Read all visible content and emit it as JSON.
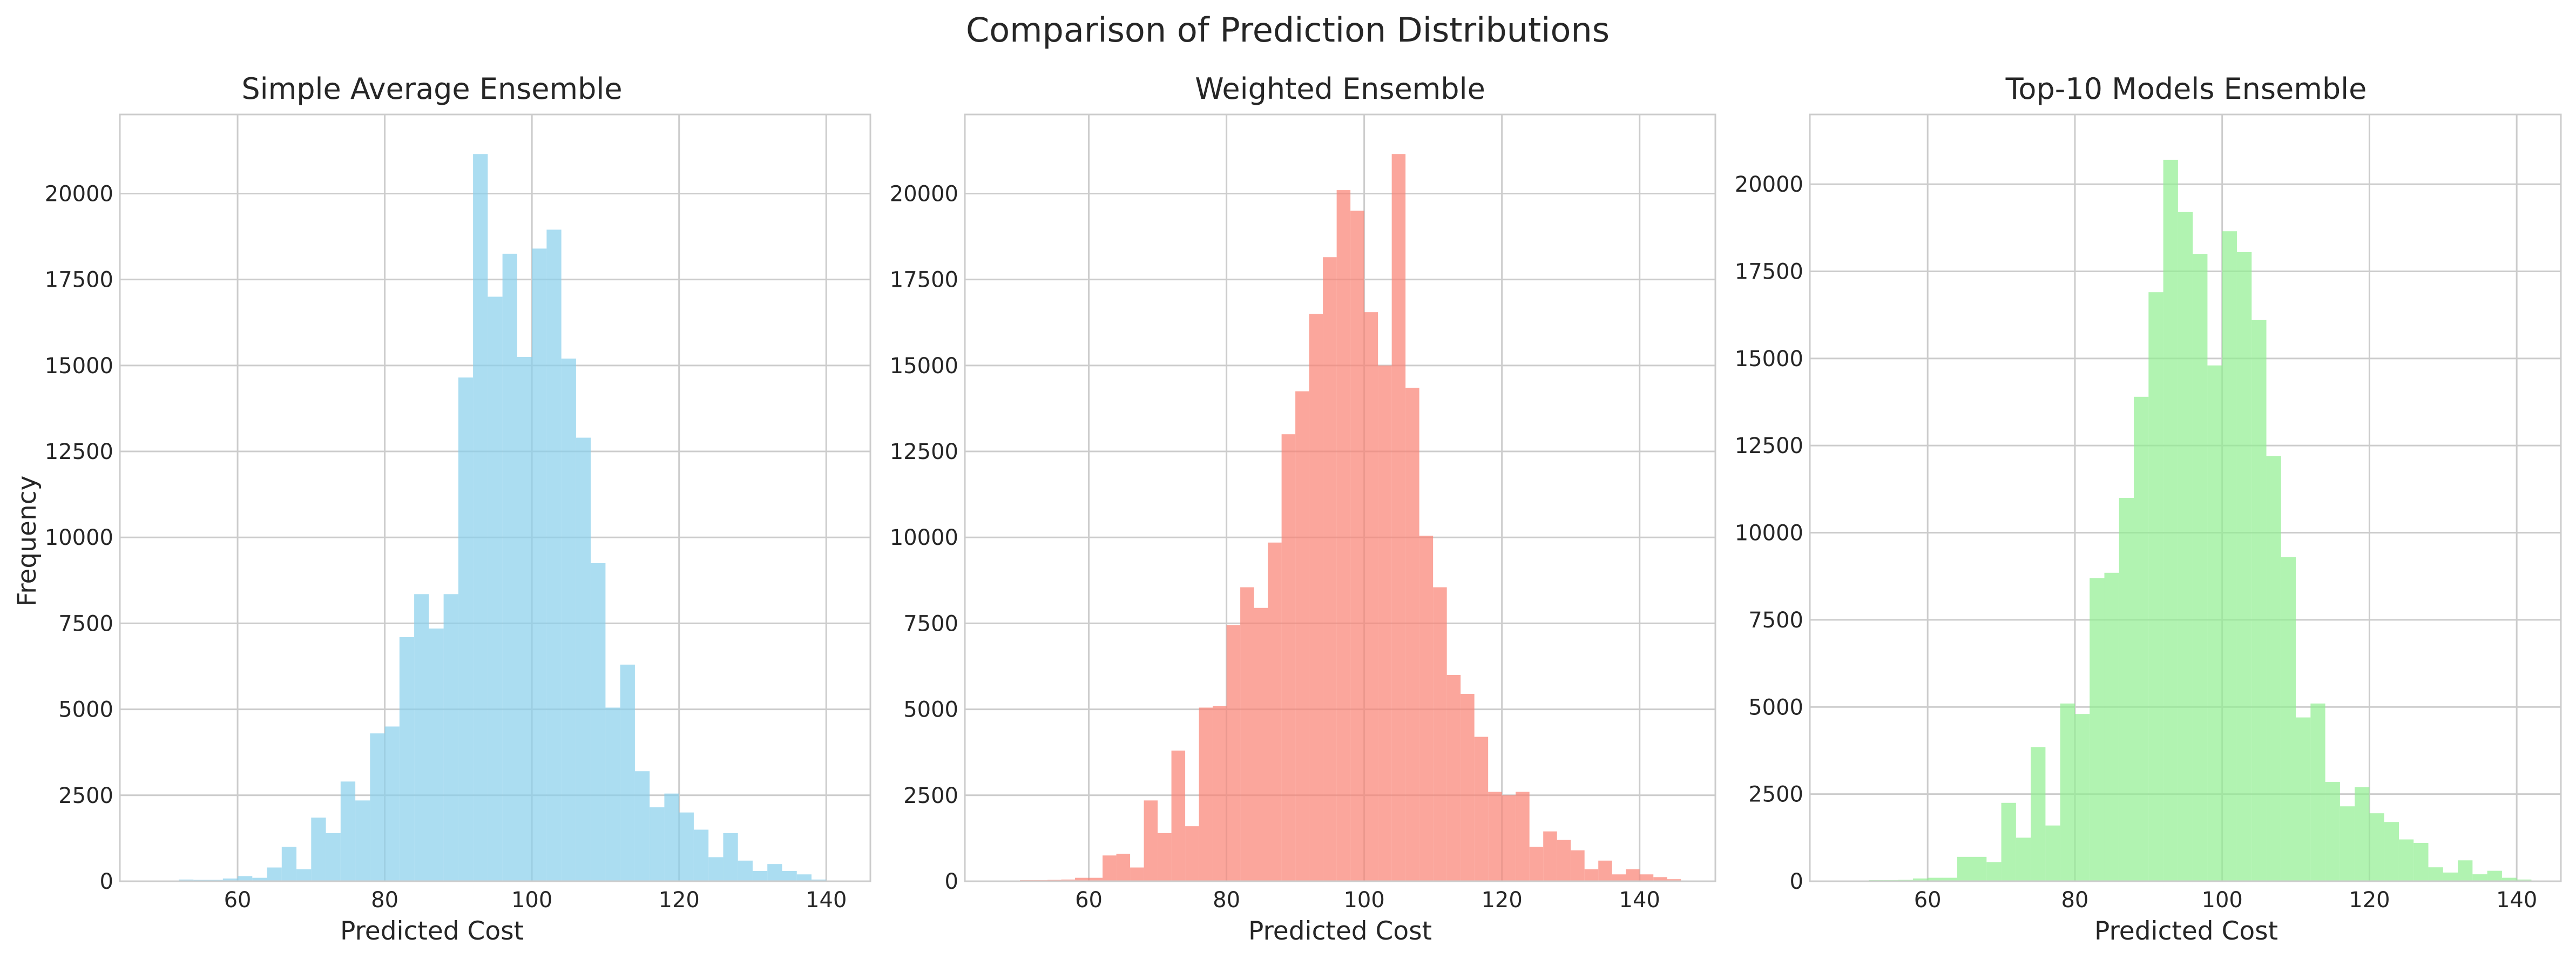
{
  "figure": {
    "title": "Comparison of Prediction Distributions"
  },
  "chart_data": [
    {
      "type": "bar",
      "title": "Simple Average Ensemble",
      "xlabel": "Predicted Cost",
      "ylabel": "Frequency",
      "xlim": [
        44,
        146
      ],
      "ylim": [
        0,
        22300
      ],
      "xticks": [
        60,
        80,
        100,
        120,
        140
      ],
      "yticks": [
        0,
        2500,
        5000,
        7500,
        10000,
        12500,
        15000,
        17500,
        20000
      ],
      "bin_width": 2,
      "bin_starts": [
        52,
        54,
        56,
        58,
        60,
        62,
        64,
        66,
        68,
        70,
        72,
        74,
        76,
        78,
        80,
        82,
        84,
        86,
        88,
        90,
        92,
        94,
        96,
        98,
        100,
        102,
        104,
        106,
        108,
        110,
        112,
        114,
        116,
        118,
        120,
        122,
        124,
        126,
        128,
        130,
        132,
        134,
        136,
        138
      ],
      "values": [
        50,
        40,
        40,
        80,
        150,
        100,
        400,
        1000,
        350,
        1850,
        1400,
        2900,
        2350,
        4300,
        4500,
        7100,
        8350,
        7350,
        8350,
        14650,
        21150,
        17000,
        18250,
        15250,
        18400,
        18950,
        15200,
        12900,
        9250,
        5050,
        6300,
        3200,
        2150,
        2550,
        2000,
        1500,
        700,
        1400,
        600,
        300,
        500,
        300,
        200,
        50
      ],
      "color": "#87ceeb",
      "grid": true
    },
    {
      "type": "bar",
      "title": "Weighted Ensemble",
      "xlabel": "Predicted Cost",
      "ylabel": "",
      "xlim": [
        42,
        151
      ],
      "ylim": [
        0,
        22300
      ],
      "xticks": [
        60,
        80,
        100,
        120,
        140
      ],
      "yticks": [
        0,
        2500,
        5000,
        7500,
        10000,
        12500,
        15000,
        17500,
        20000
      ],
      "bin_width": 2,
      "bin_starts": [
        50,
        52,
        54,
        56,
        58,
        60,
        62,
        64,
        66,
        68,
        70,
        72,
        74,
        76,
        78,
        80,
        82,
        84,
        86,
        88,
        90,
        92,
        94,
        96,
        98,
        100,
        102,
        104,
        106,
        108,
        110,
        112,
        114,
        116,
        118,
        120,
        122,
        124,
        126,
        128,
        130,
        132,
        134,
        136,
        138,
        140,
        142,
        144
      ],
      "values": [
        30,
        30,
        40,
        50,
        100,
        100,
        750,
        800,
        400,
        2350,
        1400,
        3800,
        1600,
        5050,
        5100,
        7450,
        8550,
        7950,
        9850,
        13000,
        14250,
        16500,
        18150,
        20100,
        19500,
        16550,
        15000,
        21150,
        14350,
        10050,
        8550,
        6000,
        5450,
        4200,
        2600,
        2500,
        2600,
        1000,
        1450,
        1200,
        900,
        350,
        600,
        200,
        350,
        200,
        120,
        60
      ],
      "color": "#fa8072",
      "grid": true
    },
    {
      "type": "bar",
      "title": "Top-10 Models Ensemble",
      "xlabel": "Predicted Cost",
      "ylabel": "",
      "xlim": [
        44,
        146
      ],
      "ylim": [
        0,
        22000
      ],
      "xticks": [
        60,
        80,
        100,
        120,
        140
      ],
      "yticks": [
        0,
        2500,
        5000,
        7500,
        10000,
        12500,
        15000,
        17500,
        20000
      ],
      "bin_width": 2,
      "bin_starts": [
        52,
        54,
        56,
        58,
        60,
        62,
        64,
        66,
        68,
        70,
        72,
        74,
        76,
        78,
        80,
        82,
        84,
        86,
        88,
        90,
        92,
        94,
        96,
        98,
        100,
        102,
        104,
        106,
        108,
        110,
        112,
        114,
        116,
        118,
        120,
        122,
        124,
        126,
        128,
        130,
        132,
        134,
        136,
        138,
        140
      ],
      "values": [
        30,
        30,
        40,
        80,
        100,
        100,
        700,
        700,
        550,
        2250,
        1250,
        3850,
        1600,
        5100,
        4800,
        8700,
        8850,
        11000,
        13900,
        16900,
        20700,
        19200,
        18000,
        14800,
        18650,
        18050,
        16100,
        12200,
        9300,
        4700,
        5100,
        2850,
        2150,
        2700,
        1950,
        1700,
        1200,
        1100,
        400,
        250,
        600,
        200,
        300,
        100,
        50
      ],
      "color": "#90ee90",
      "grid": true
    }
  ]
}
